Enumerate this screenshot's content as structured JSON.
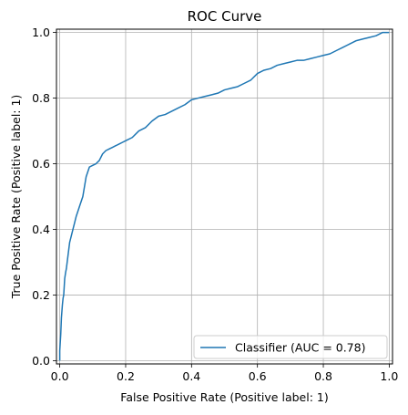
{
  "colors": {
    "curve": "#1f77b4",
    "grid": "#b0b0b0",
    "axis": "#000000",
    "legend_border": "#cccccc",
    "background": "#ffffff"
  },
  "chart_data": {
    "type": "line",
    "title": "ROC Curve",
    "xlabel": "False Positive Rate (Positive label: 1)",
    "ylabel": "True Positive Rate (Positive label: 1)",
    "xlim": [
      -0.01,
      1.01
    ],
    "ylim": [
      -0.01,
      1.01
    ],
    "grid": true,
    "legend_placement": "lower-right",
    "x_ticks": [
      0.0,
      0.2,
      0.4,
      0.6,
      0.8,
      1.0
    ],
    "x_tick_labels": [
      "0.0",
      "0.2",
      "0.4",
      "0.6",
      "0.8",
      "1.0"
    ],
    "y_ticks": [
      0.0,
      0.2,
      0.4,
      0.6,
      0.8,
      1.0
    ],
    "y_tick_labels": [
      "0.0",
      "0.2",
      "0.4",
      "0.6",
      "0.8",
      "1.0"
    ],
    "series": [
      {
        "name": "Classifier (AUC = 0.78)",
        "x": [
          0.0,
          0.0,
          0.003,
          0.005,
          0.008,
          0.01,
          0.012,
          0.015,
          0.018,
          0.02,
          0.025,
          0.03,
          0.035,
          0.04,
          0.045,
          0.05,
          0.06,
          0.07,
          0.08,
          0.09,
          0.1,
          0.11,
          0.12,
          0.13,
          0.14,
          0.15,
          0.16,
          0.17,
          0.18,
          0.19,
          0.2,
          0.22,
          0.24,
          0.26,
          0.28,
          0.3,
          0.32,
          0.34,
          0.36,
          0.38,
          0.4,
          0.42,
          0.44,
          0.46,
          0.48,
          0.5,
          0.52,
          0.54,
          0.56,
          0.58,
          0.6,
          0.62,
          0.64,
          0.66,
          0.68,
          0.7,
          0.72,
          0.74,
          0.76,
          0.78,
          0.8,
          0.82,
          0.84,
          0.86,
          0.88,
          0.9,
          0.92,
          0.94,
          0.96,
          0.98,
          1.0
        ],
        "y": [
          0.0,
          0.03,
          0.08,
          0.13,
          0.17,
          0.19,
          0.2,
          0.25,
          0.27,
          0.28,
          0.32,
          0.36,
          0.38,
          0.4,
          0.42,
          0.44,
          0.47,
          0.5,
          0.56,
          0.59,
          0.595,
          0.6,
          0.61,
          0.63,
          0.64,
          0.645,
          0.65,
          0.655,
          0.66,
          0.665,
          0.67,
          0.68,
          0.7,
          0.71,
          0.73,
          0.745,
          0.75,
          0.76,
          0.77,
          0.78,
          0.795,
          0.8,
          0.805,
          0.81,
          0.815,
          0.825,
          0.83,
          0.835,
          0.845,
          0.855,
          0.875,
          0.885,
          0.89,
          0.9,
          0.905,
          0.91,
          0.915,
          0.915,
          0.92,
          0.925,
          0.93,
          0.935,
          0.945,
          0.955,
          0.965,
          0.975,
          0.98,
          0.985,
          0.99,
          1.0,
          1.0
        ]
      }
    ]
  }
}
